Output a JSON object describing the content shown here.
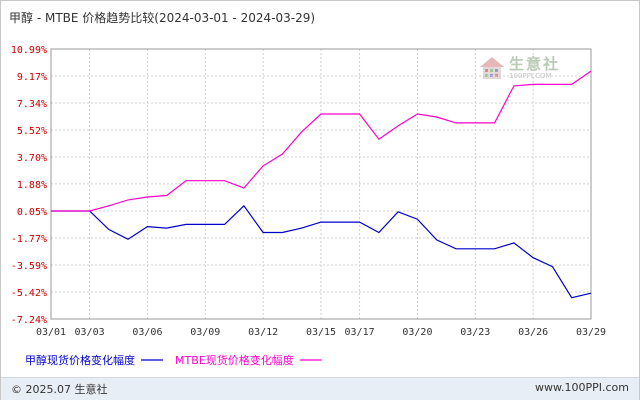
{
  "title": "甲醇 - MTBE 价格趋势比较(2024-03-01 - 2024-03-29)",
  "watermark": {
    "name": "生意社",
    "url": "100PPI.COM"
  },
  "footer": {
    "copyright": "© 2025.07 生意社",
    "site": "www.100PPI.com"
  },
  "colors": {
    "series1": "#0000cc",
    "series2": "#ff00cc",
    "ytick": "#cc0000",
    "grid": "#d0d0d0"
  },
  "chart_data": {
    "type": "line",
    "title": "甲醇 - MTBE 价格趋势比较(2024-03-01 - 2024-03-29)",
    "xlabel": "",
    "ylabel": "",
    "ylim": [
      -7.24,
      10.99
    ],
    "y_ticks": [
      "10.99%",
      "9.17%",
      "7.34%",
      "5.52%",
      "3.70%",
      "1.88%",
      "0.05%",
      "-1.77%",
      "-3.59%",
      "-5.42%",
      "-7.24%"
    ],
    "y_tick_values": [
      10.99,
      9.17,
      7.34,
      5.52,
      3.7,
      1.88,
      0.05,
      -1.77,
      -3.59,
      -5.42,
      -7.24
    ],
    "x_ticks": [
      "03/01",
      "03/03",
      "03/06",
      "03/09",
      "03/12",
      "03/15",
      "03/17",
      "03/20",
      "03/23",
      "03/26",
      "03/29"
    ],
    "x": [
      "03/01",
      "03/02",
      "03/03",
      "03/04",
      "03/05",
      "03/06",
      "03/07",
      "03/08",
      "03/09",
      "03/10",
      "03/11",
      "03/12",
      "03/13",
      "03/14",
      "03/15",
      "03/16",
      "03/17",
      "03/18",
      "03/19",
      "03/20",
      "03/21",
      "03/22",
      "03/23",
      "03/24",
      "03/25",
      "03/26",
      "03/27",
      "03/28",
      "03/29"
    ],
    "grid": true,
    "legend": "bottom-left",
    "series": [
      {
        "name": "甲醇现货价格变化幅度",
        "color": "#0000cc",
        "values": [
          0.05,
          0.05,
          0.05,
          -1.2,
          -1.85,
          -1.0,
          -1.1,
          -0.85,
          -0.85,
          -0.85,
          0.4,
          -1.4,
          -1.4,
          -1.1,
          -0.7,
          -0.7,
          -0.7,
          -1.4,
          0.0,
          -0.5,
          -1.9,
          -2.5,
          -2.5,
          -2.5,
          -2.1,
          -3.1,
          -3.7,
          -5.8,
          -5.5
        ]
      },
      {
        "name": "MTBE现货价格变化幅度",
        "color": "#ff00cc",
        "values": [
          0.05,
          0.05,
          0.05,
          0.4,
          0.8,
          1.0,
          1.1,
          2.1,
          2.1,
          2.1,
          1.6,
          3.1,
          3.9,
          5.4,
          6.6,
          6.6,
          6.6,
          4.9,
          5.8,
          6.6,
          6.4,
          6.0,
          6.0,
          6.0,
          8.5,
          8.6,
          8.6,
          8.6,
          9.5
        ]
      }
    ]
  }
}
